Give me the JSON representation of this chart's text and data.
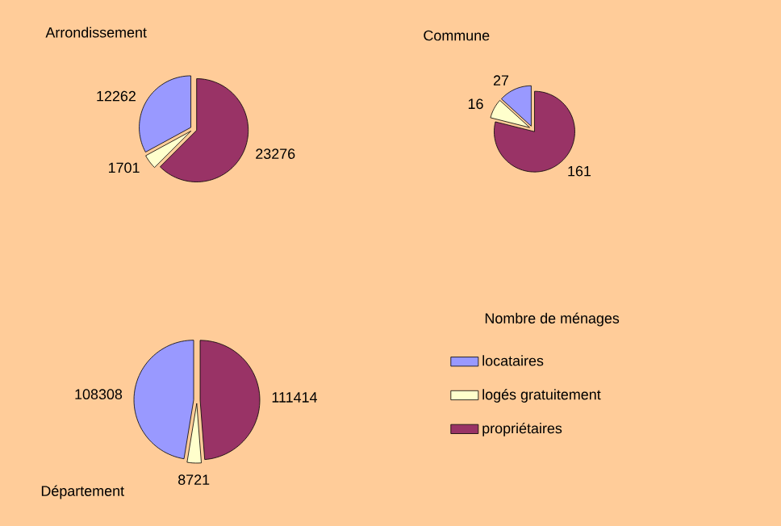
{
  "chart_data": [
    {
      "type": "pie",
      "title": "Arrondissement",
      "values": [
        12262,
        1701,
        23276
      ],
      "colors": [
        "#9999ff",
        "#ffffcc",
        "#993366"
      ],
      "data_labels": true
    },
    {
      "type": "pie",
      "title": "Commune",
      "values": [
        27,
        16,
        161
      ],
      "colors": [
        "#9999ff",
        "#ffffcc",
        "#993366"
      ],
      "data_labels": true
    },
    {
      "type": "pie",
      "title": "Département",
      "categories": [
        "locataires",
        "logés gratuitement",
        "propriétaires"
      ],
      "values": [
        108308,
        8721,
        111414
      ],
      "colors": [
        "#9999ff",
        "#ffffcc",
        "#993366"
      ],
      "data_labels": true,
      "legend": "right",
      "legend_title": "Nombre de ménages"
    }
  ]
}
